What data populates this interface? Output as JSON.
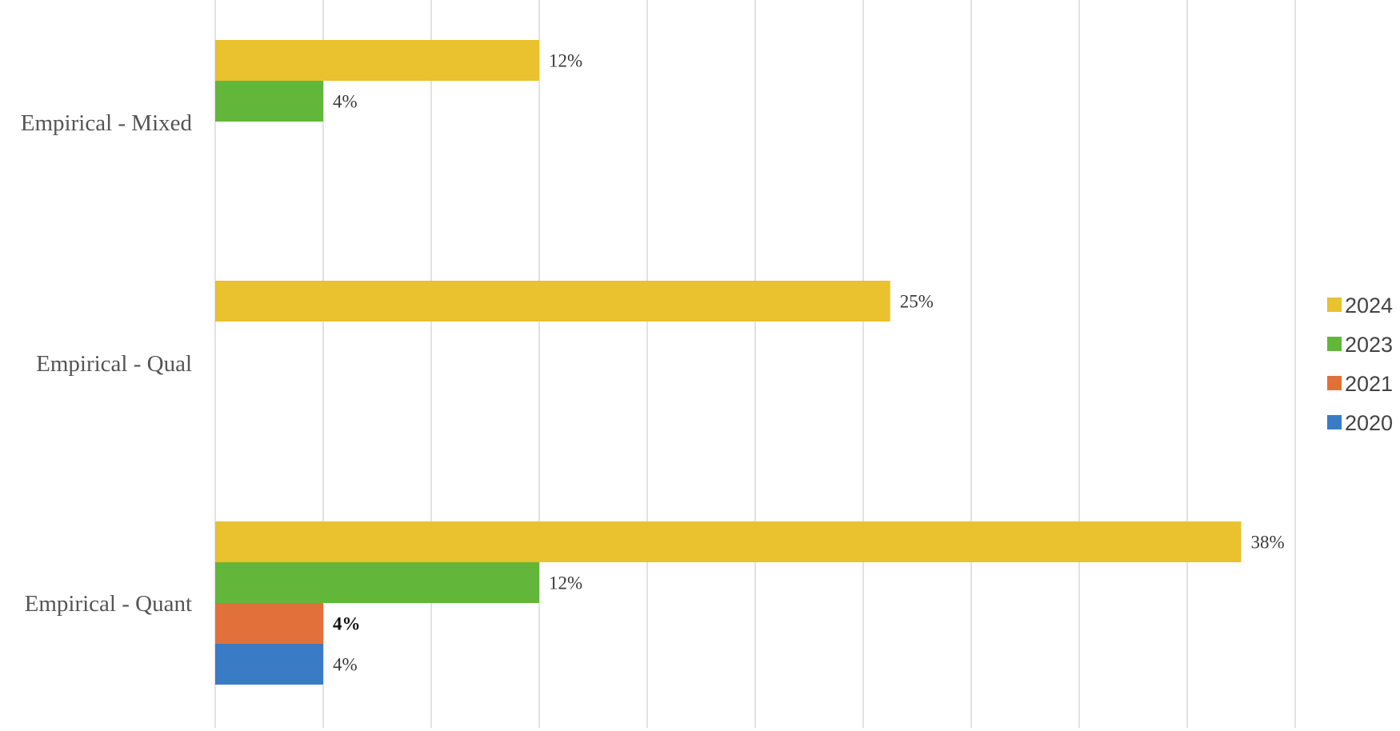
{
  "chart_data": {
    "type": "bar",
    "orientation": "horizontal",
    "categories": [
      "Empirical - Mixed",
      "Empirical - Qual",
      "Empirical - Quant"
    ],
    "series": [
      {
        "name": "2024",
        "color": "#EAC12E",
        "values": [
          12,
          25,
          38
        ],
        "labels": [
          "12%",
          "25%",
          "38%"
        ]
      },
      {
        "name": "2023",
        "color": "#62B73A",
        "values": [
          4,
          null,
          12
        ],
        "labels": [
          "4%",
          "",
          "12%"
        ]
      },
      {
        "name": "2021",
        "color": "#E2703A",
        "values": [
          null,
          null,
          4
        ],
        "labels": [
          "",
          "",
          "4%"
        ]
      },
      {
        "name": "2020",
        "color": "#3A7BC6",
        "values": [
          null,
          null,
          4
        ],
        "labels": [
          "",
          "",
          "4%"
        ]
      }
    ],
    "value_unit": "%",
    "xlim": [
      0,
      50
    ],
    "grid_step": 4,
    "grid": true,
    "legend_position": "right",
    "title": "",
    "xlabel": "",
    "ylabel": ""
  }
}
